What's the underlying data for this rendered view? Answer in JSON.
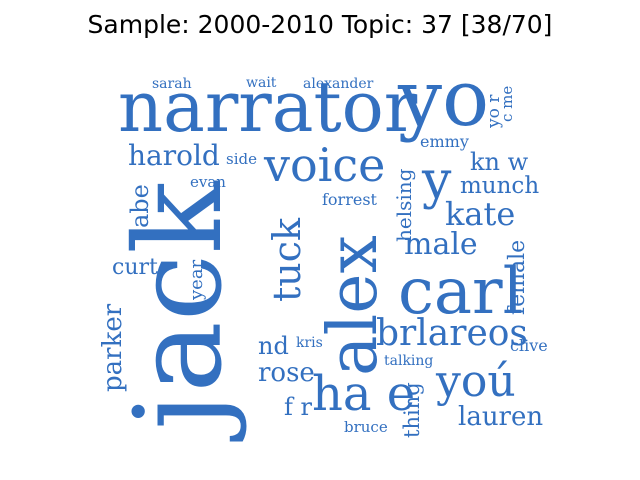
{
  "title": "Sample: 2000-2010 Topic: 37 [38/70]",
  "word_color": "#3370c0",
  "words": {
    "narrator": "narrator",
    "yo": "yo",
    "sarah": "sarah",
    "wait": "wait",
    "alexander": "alexander",
    "cme": "c me",
    "yor": "yo r",
    "emmy": "emmy",
    "harold": "harold",
    "side": "side",
    "voice": "voice",
    "knw": "kn w",
    "evan": "evan",
    "y": "y",
    "munch": "munch",
    "forrest": "forrest",
    "abe": "abe",
    "jack": "jack",
    "helsing": "helsing",
    "kate": "kate",
    "tuck": "tuck",
    "alex": "alex",
    "male": "male",
    "female": "female",
    "curt": "curt",
    "year": "year",
    "carl": "carl",
    "parker": "parker",
    "nd": "nd",
    "kris": "kris",
    "brlareos": "brlareos",
    "clive": "clive",
    "talking": "talking",
    "rose": "rose",
    "you": "yoú",
    "hae": "ha e",
    "fr": "f r",
    "thing": "thing",
    "lauren": "lauren",
    "bruce": "bruce"
  }
}
